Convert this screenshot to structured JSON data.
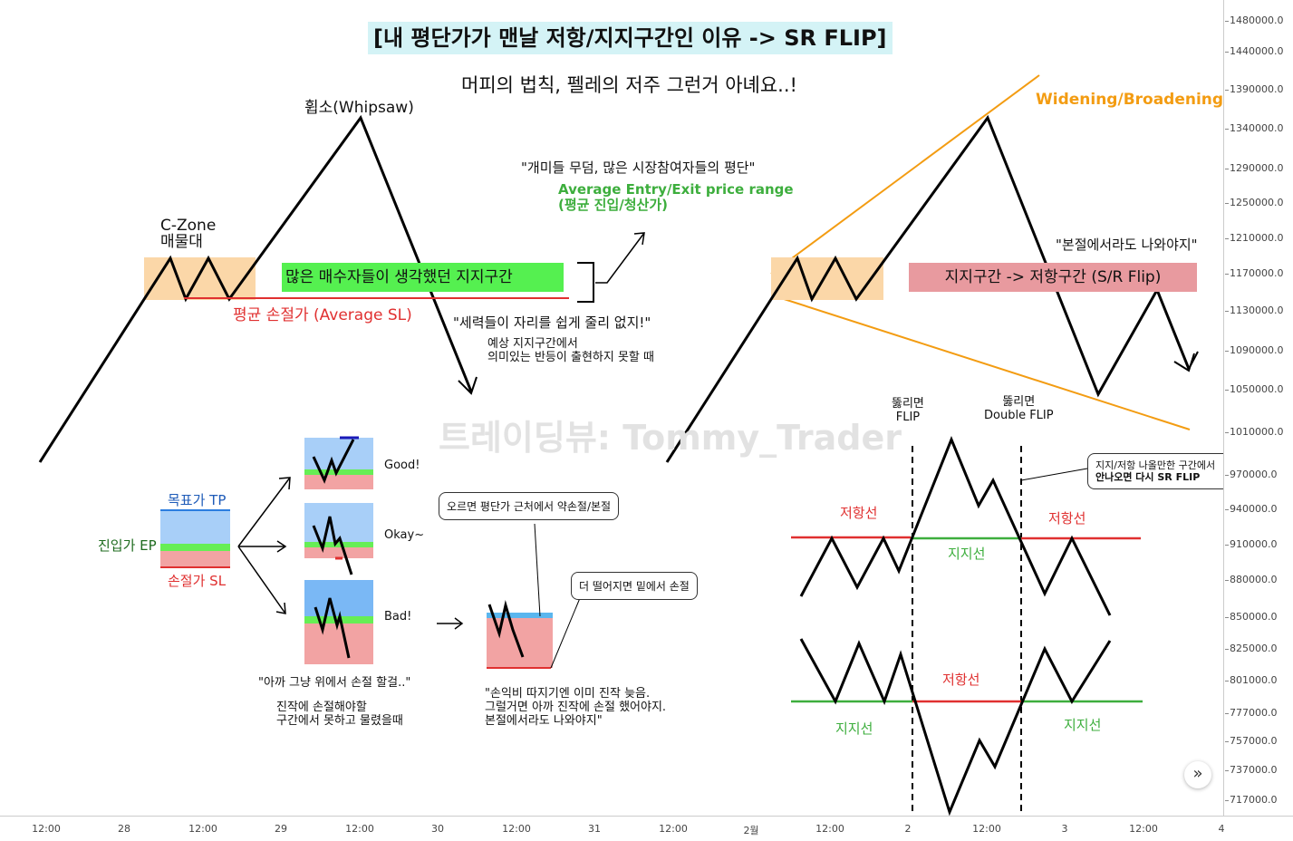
{
  "header": {
    "title": "[내 평단가가 맨날 저항/지지구간인 이유 -> SR FLIP]",
    "subtitle": "머피의 법칙, 펠레의 저주 그런거 아녜요..!"
  },
  "left_chart": {
    "whipsaw": "휩소(Whipsaw)",
    "czone_line1": "C-Zone",
    "czone_line2": "매물대",
    "support_box": "많은 매수자들이 생각했던 지지구간",
    "avg_sl": "평균 손절가 (Average SL)",
    "quote_ants": "\"개미들 무덤, 많은 시장참여자들의 평단\"",
    "avg_entry_line1": "Average Entry/Exit price range",
    "avg_entry_line2": "(평균 진입/청산가)",
    "quote_force": "\"세력들이 자리를 쉽게 줄리 없지!\"",
    "note_line1": "예상 지지구간에서",
    "note_line2": "의미있는 반등이 출현하지 못할 때"
  },
  "right_chart": {
    "widening": "Widening/Broadening",
    "flip_box": "지지구간 -> 저항구간 (S/R Flip)",
    "quote_exit": "\"본절에서라도 나와야지\""
  },
  "watermark": "트레이딩뷰: Tommy_Trader",
  "trade_diagram": {
    "tp": "목표가 TP",
    "ep": "진입가 EP",
    "sl": "손절가 SL",
    "good": "Good!",
    "okay": "Okay~",
    "bad": "Bad!",
    "quote_regret": "\"아까 그냥 위에서 손절 할걸..\"",
    "note_line1": "진작에 손절해야할",
    "note_line2": "구간에서 못하고 물렸을때",
    "callout_top": "오르면 평단가 근처에서 약손절/본절",
    "callout_bottom": "더 떨어지면 밑에서 손절",
    "quote_late_line1": "\"손익비 따지기엔 이미 진작 늦음.",
    "quote_late_line2": "그럴거면 아까 진작에 손절 했어야지.",
    "quote_late_line3": "본절에서라도 나와야지\""
  },
  "flip_diagram": {
    "break_label_1a": "뚫리면",
    "break_label_1b": "FLIP",
    "break_label_2a": "뚫리면",
    "break_label_2b": "Double FLIP",
    "callout_line1": "지지/저항 나올만한 구간에서",
    "callout_line2": "안나오면 다시 SR FLIP",
    "resistance": "저항선",
    "support": "지지선"
  },
  "price_axis": [
    "1480000.0",
    "1440000.0",
    "1390000.0",
    "1340000.0",
    "1290000.0",
    "1250000.0",
    "1210000.0",
    "1170000.0",
    "1130000.0",
    "1090000.0",
    "1050000.0",
    "1010000.0",
    "970000.0",
    "940000.0",
    "910000.0",
    "880000.0",
    "850000.0",
    "825000.0",
    "801000.0",
    "777000.0",
    "757000.0",
    "737000.0",
    "717000.0"
  ],
  "time_axis": [
    "12:00",
    "28",
    "12:00",
    "29",
    "12:00",
    "30",
    "12:00",
    "31",
    "12:00",
    "2월",
    "12:00",
    "2",
    "12:00",
    "3",
    "12:00",
    "4"
  ],
  "colors": {
    "support": "#3dae3d",
    "resistance": "#e03030",
    "orange": "#f39c12",
    "czone": "#fbd7a8"
  }
}
